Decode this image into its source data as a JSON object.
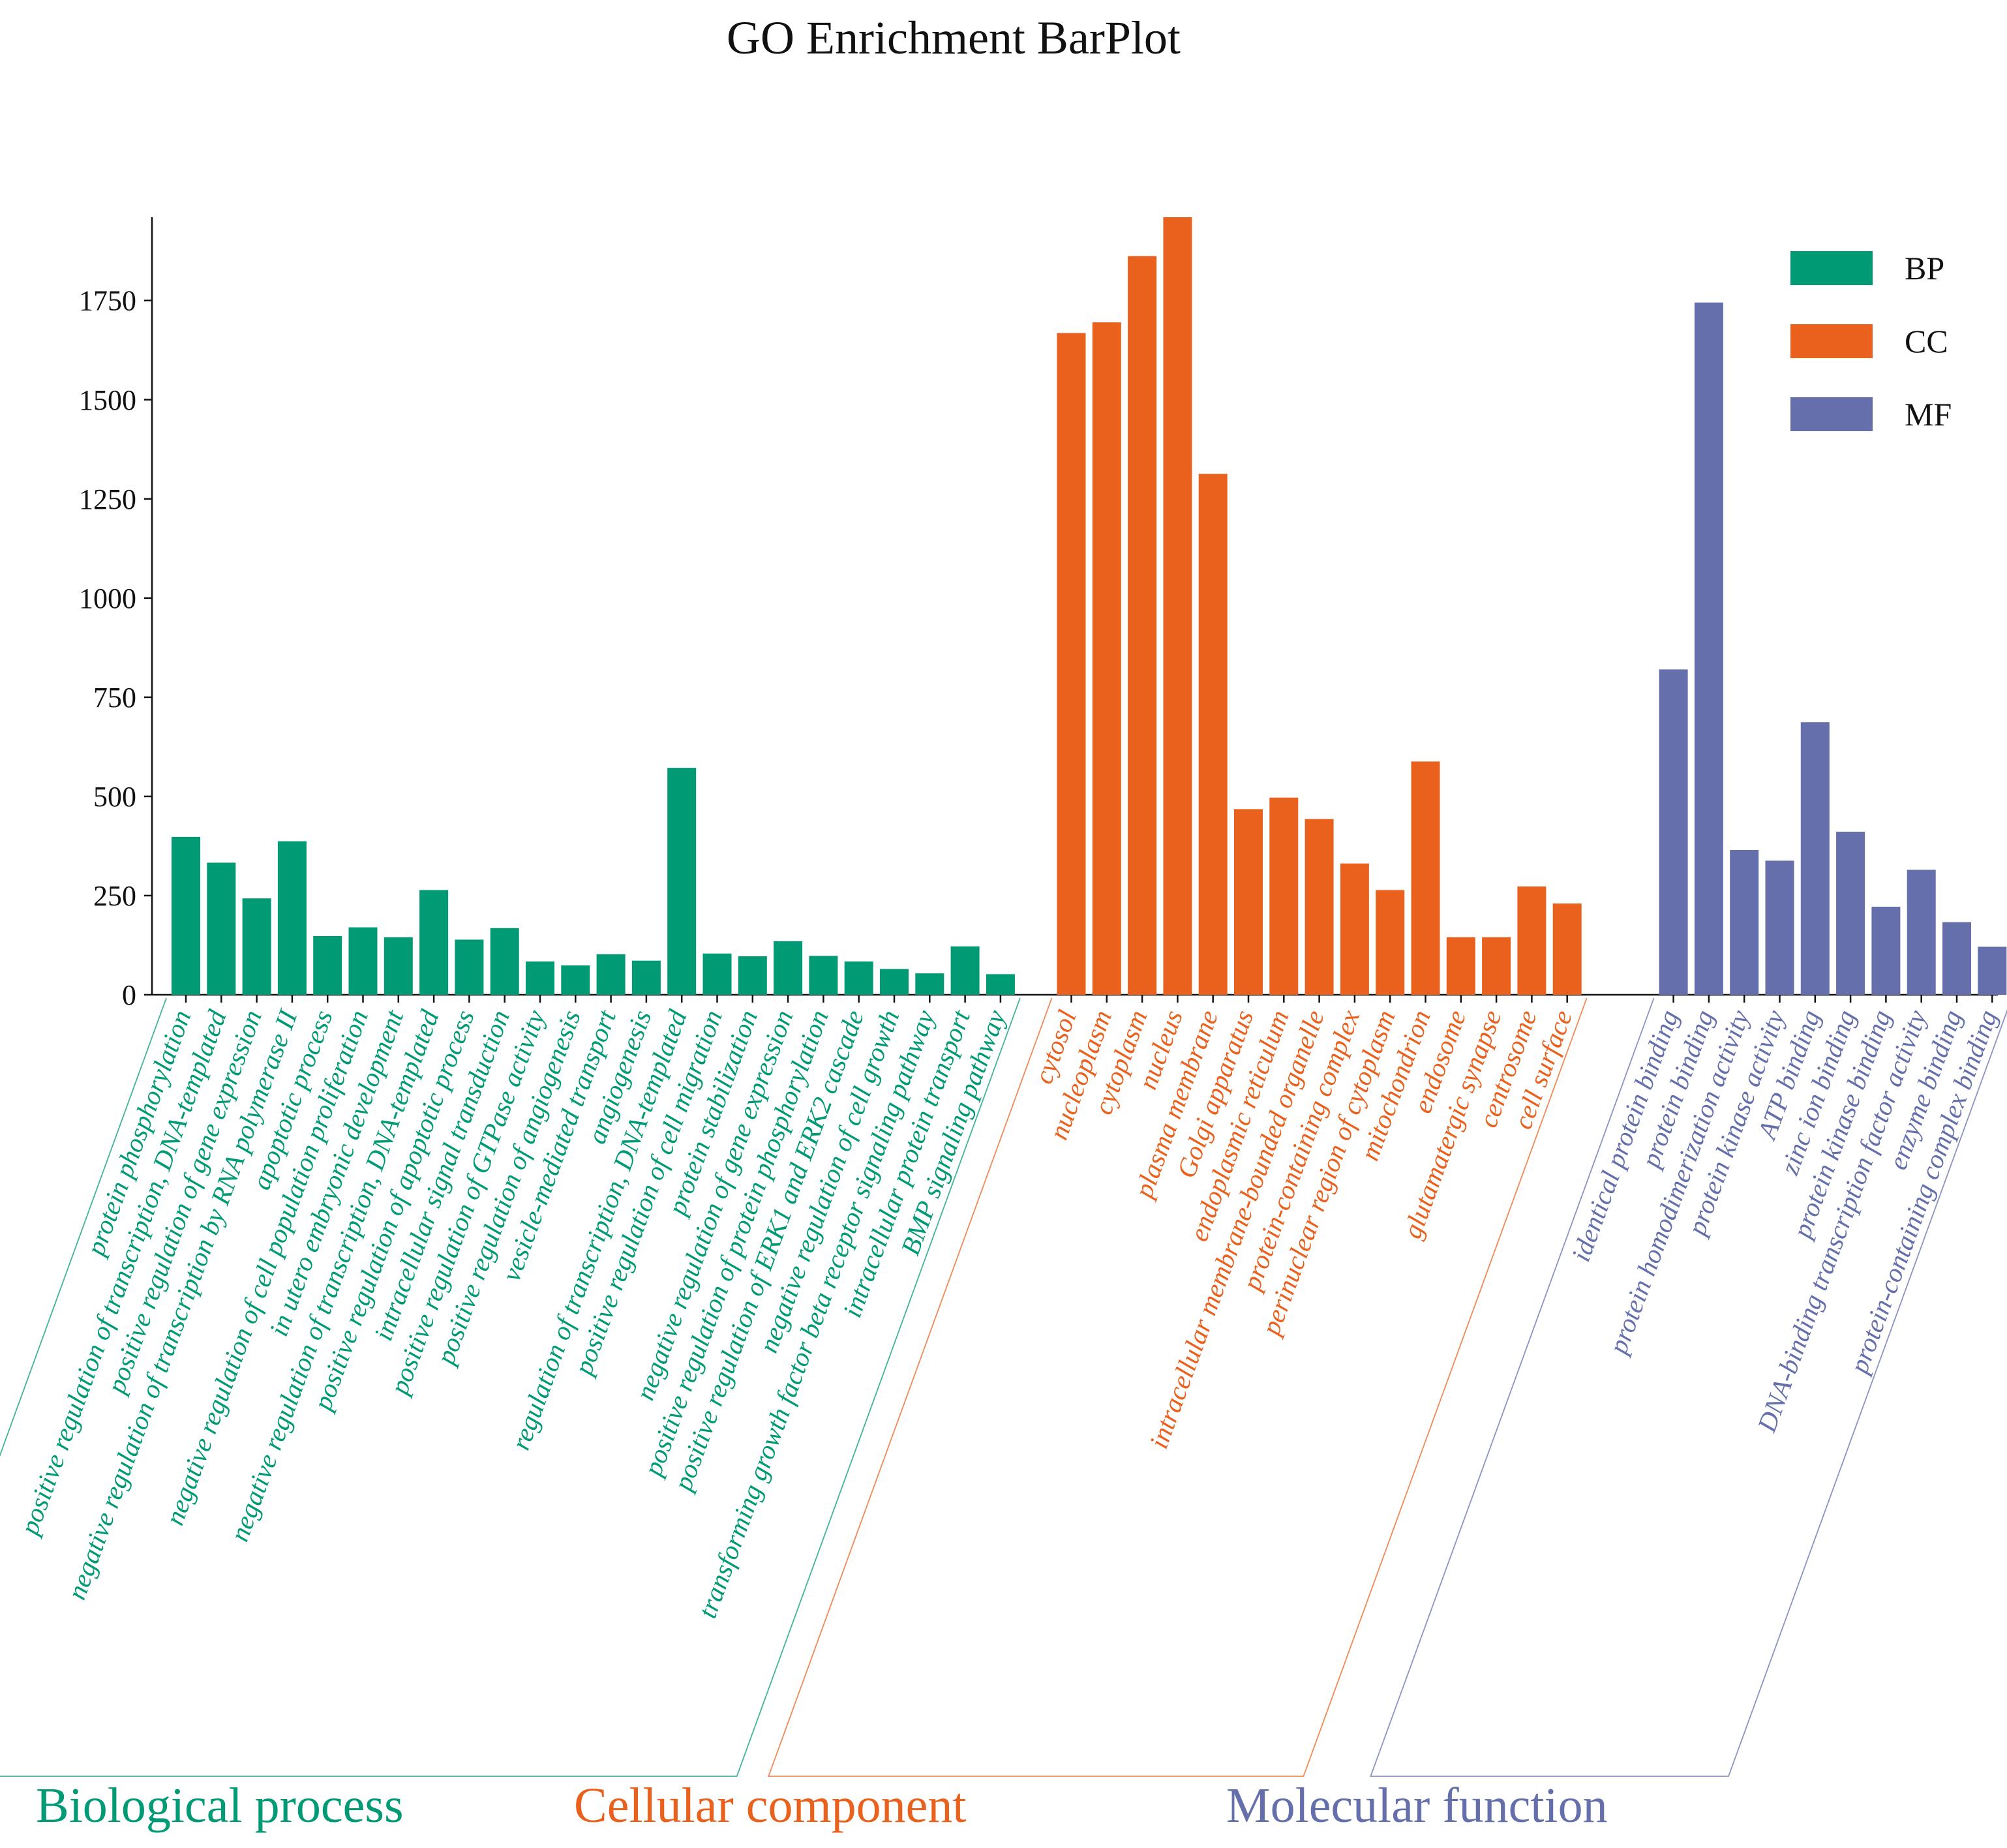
{
  "chart_data": {
    "type": "bar",
    "title": "GO Enrichment BarPlot",
    "xlabel": "",
    "ylabel": "",
    "ylim": [
      0,
      1960
    ],
    "yticks": [
      0,
      250,
      500,
      750,
      1000,
      1250,
      1500,
      1750
    ],
    "legend": {
      "placement": "top-right",
      "entries": [
        "BP",
        "CC",
        "MF"
      ]
    },
    "colors": {
      "BP": "#009a75",
      "CC": "#e9611d",
      "MF": "#646fab"
    },
    "groups": [
      {
        "key": "BP",
        "name": "Biological process",
        "categories": [
          "protein phosphorylation",
          "positive regulation of transcription, DNA-templated",
          "positive regulation of gene expression",
          "negative regulation of transcription by RNA polymerase II",
          "apoptotic process",
          "negative regulation of cell population proliferation",
          "in utero embryonic development",
          "negative regulation of transcription, DNA-templated",
          "positive regulation of apoptotic process",
          "intracellular signal transduction",
          "positive regulation of GTPase activity",
          "positive regulation of angiogenesis",
          "vesicle-mediated transport",
          "angiogenesis",
          "regulation of transcription, DNA-templated",
          "positive regulation of cell migration",
          "protein stabilization",
          "negative regulation of gene expression",
          "positive regulation of protein phosphorylation",
          "positive regulation of ERK1 and ERK2 cascade",
          "negative regulation of cell growth",
          "transforming growth factor beta receptor signaling pathway",
          "intracellular protein transport",
          "BMP signaling pathway"
        ],
        "values": [
          398,
          333,
          243,
          387,
          148,
          170,
          145,
          264,
          139,
          168,
          84,
          74,
          102,
          86,
          572,
          104,
          97,
          135,
          98,
          84,
          65,
          54,
          122,
          52
        ]
      },
      {
        "key": "CC",
        "name": "Cellular component",
        "categories": [
          "cytosol",
          "nucleoplasm",
          "cytoplasm",
          "nucleus",
          "plasma membrane",
          "Golgi apparatus",
          "endoplasmic reticulum",
          "intracellular membrane-bounded organelle",
          "protein-containing complex",
          "perinuclear region of cytoplasm",
          "mitochondrion",
          "endosome",
          "glutamatergic synapse",
          "centrosome",
          "cell surface"
        ],
        "values": [
          1668,
          1695,
          1862,
          1960,
          1313,
          468,
          497,
          443,
          331,
          264,
          588,
          145,
          145,
          273,
          230
        ]
      },
      {
        "key": "MF",
        "name": "Molecular function",
        "categories": [
          "identical protein binding",
          "protein binding",
          "protein homodimerization activity",
          "protein kinase activity",
          "ATP binding",
          "zinc ion binding",
          "protein kinase binding",
          "DNA-binding transcription factor activity",
          "enzyme binding",
          "protein-containing complex binding"
        ],
        "values": [
          820,
          1745,
          365,
          338,
          687,
          411,
          222,
          315,
          183,
          121
        ]
      }
    ]
  }
}
